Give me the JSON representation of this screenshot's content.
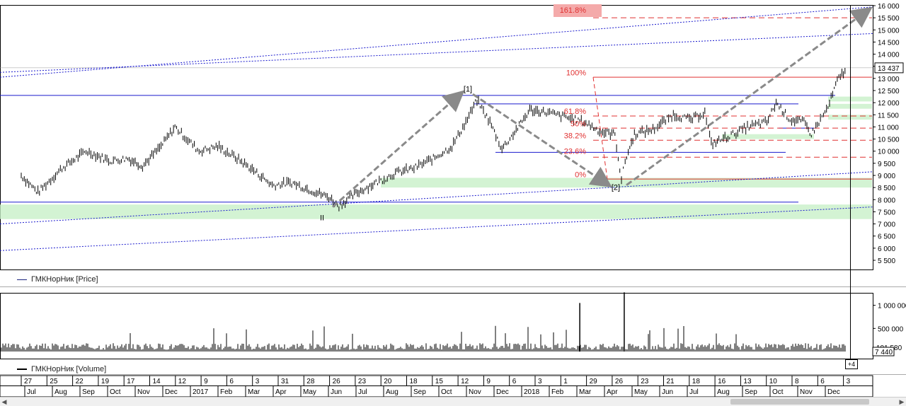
{
  "window": {
    "price_legend": "ГМКНорНик [Price]",
    "volume_legend": "ГМКНорНик [Volume]",
    "plus_label": "+4",
    "scroll_left_icon": "chevron-left-icon",
    "scroll_right_icon": "chevron-right-icon"
  },
  "colors": {
    "price_line_blue": "#1a1acd",
    "fib_red": "#e03030",
    "support_green": "#c8f0c8",
    "arrow_gray": "#8a8a8a",
    "candle_black": "#000000"
  },
  "chart_data": [
    {
      "type": "line",
      "name": "price",
      "series": [
        {
          "x": [
            "2016-06-27",
            "2016-07-15",
            "2016-08-10",
            "2016-09-05",
            "2016-10-01",
            "2016-10-20",
            "2016-11-05",
            "2016-11-25",
            "2016-12-10",
            "2017-01-05",
            "2017-01-25",
            "2017-02-15",
            "2017-03-05",
            "2017-03-25",
            "2017-04-15",
            "2017-05-05",
            "2017-05-25",
            "2017-06-05",
            "2017-06-25",
            "2017-07-15",
            "2017-08-05",
            "2017-08-25",
            "2017-09-15",
            "2017-10-05",
            "2017-10-20",
            "2017-11-01",
            "2017-11-15",
            "2017-11-28",
            "2017-12-10",
            "2017-12-28",
            "2018-01-15",
            "2018-02-05",
            "2018-02-25",
            "2018-03-15",
            "2018-03-30",
            "2018-04-06",
            "2018-04-10",
            "2018-04-20",
            "2018-05-10",
            "2018-06-01",
            "2018-06-20",
            "2018-07-05",
            "2018-07-12",
            "2018-07-30",
            "2018-08-20",
            "2018-09-10",
            "2018-09-20",
            "2018-10-05",
            "2018-10-20",
            "2018-10-28",
            "2018-11-15",
            "2018-11-25",
            "2018-12-05"
          ],
          "values": [
            9000,
            8300,
            9300,
            10000,
            9600,
            9700,
            9400,
            10200,
            11000,
            10000,
            10200,
            9700,
            9200,
            8600,
            8700,
            8400,
            8100,
            7750,
            8300,
            8700,
            9100,
            9300,
            9700,
            10200,
            11200,
            12100,
            11200,
            10100,
            10700,
            11700,
            11600,
            11400,
            11200,
            10800,
            10700,
            8800,
            9600,
            10700,
            10900,
            11500,
            11300,
            11600,
            10300,
            10600,
            11000,
            11200,
            12000,
            11300,
            11200,
            10700,
            11800,
            12900,
            13437
          ]
        }
      ],
      "ylim": [
        5000,
        16000
      ],
      "yticks": [
        "16 000",
        "15 500",
        "15 000",
        "14 500",
        "14 000",
        "13 500",
        "13 000",
        "12 500",
        "12 000",
        "11 500",
        "11 000",
        "10 500",
        "10 000",
        "9 500",
        "9 000",
        "8 500",
        "8 000",
        "7 500",
        "7 000",
        "6 500",
        "6 000",
        "5 500"
      ],
      "last_price_label": "13 437",
      "fib_labels": [
        "100%",
        "61.8%",
        "50%",
        "38.2%",
        "23.6%",
        "0%",
        "161.8%"
      ],
      "wave_labels": [
        "II",
        "[1]",
        "[2]"
      ],
      "grid": false
    },
    {
      "type": "bar",
      "name": "volume",
      "ylim": [
        0,
        1300000
      ],
      "yticks": [
        "1 000 000",
        "500 000"
      ],
      "last_volume_labels": [
        "101 580",
        "7 440"
      ],
      "spikes": [
        {
          "x": "2018-02-20",
          "value": 1050000
        },
        {
          "x": "2018-04-09",
          "value": 1280000
        }
      ]
    }
  ],
  "x_axis": {
    "days": [
      "27",
      "25",
      "22",
      "19",
      "17",
      "14",
      "12",
      "9",
      "6",
      "3",
      "31",
      "28",
      "26",
      "23",
      "20",
      "18",
      "15",
      "12",
      "9",
      "6",
      "3",
      "1",
      "29",
      "26",
      "23",
      "21",
      "18",
      "16",
      "13",
      "10",
      "8",
      "6",
      "3"
    ],
    "months": [
      "Jul",
      "Aug",
      "Sep",
      "Oct",
      "Nov",
      "Dec",
      "2017",
      "Feb",
      "Mar",
      "Apr",
      "May",
      "Jun",
      "Jul",
      "Aug",
      "Sep",
      "Oct",
      "Nov",
      "Dec",
      "2018",
      "Feb",
      "Mar",
      "Apr",
      "May",
      "Jun",
      "Jul",
      "Aug",
      "Sep",
      "Oct",
      "Nov",
      "Dec"
    ]
  }
}
